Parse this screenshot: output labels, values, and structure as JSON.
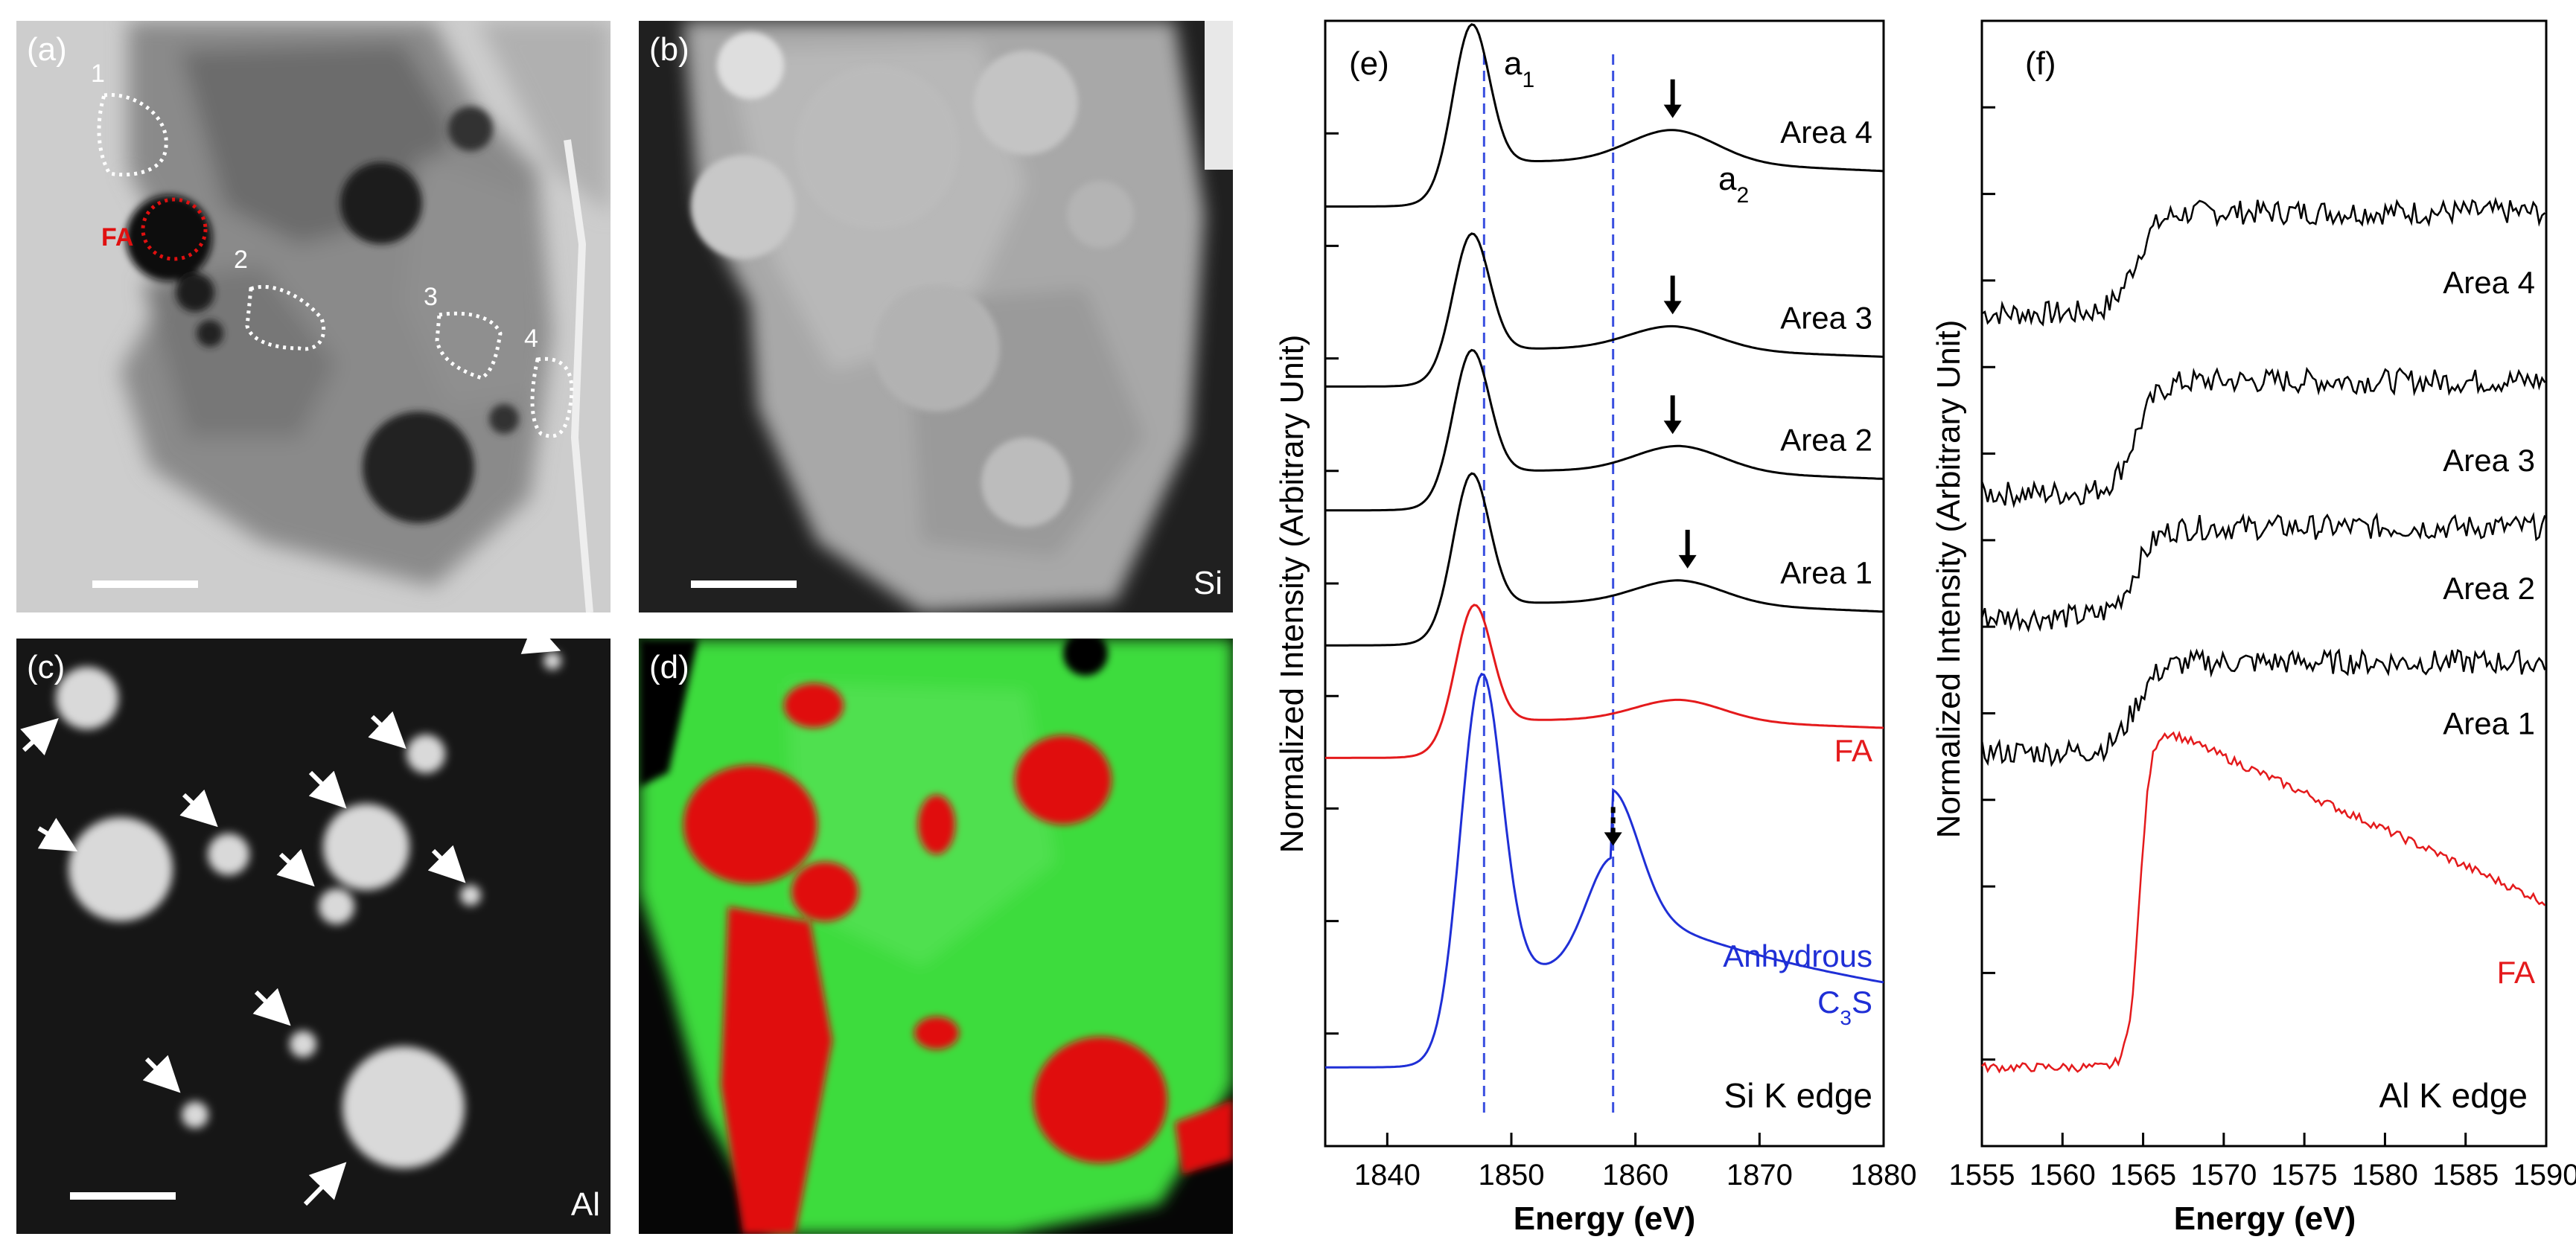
{
  "panels": {
    "a": {
      "label": "(a)",
      "regions": [
        "1",
        "FA",
        "2",
        "3",
        "4"
      ]
    },
    "b": {
      "label": "(b)",
      "element": "Si"
    },
    "c": {
      "label": "(c)",
      "element": "Al"
    },
    "d": {
      "label": "(d)"
    }
  },
  "colors": {
    "black_curve": "#000000",
    "fa_curve": "#e41a1c",
    "c3s_curve": "#1f2fd6",
    "guide_line": "#3a4fe0",
    "overlay_green": "#3ddc3d",
    "overlay_red": "#e01010"
  },
  "chart_data": [
    {
      "type": "line",
      "panel_label": "(e)",
      "xlabel": "Energy (eV)",
      "ylabel": "Normalized Intensity (Arbitrary Unit)",
      "xlim": [
        1835,
        1880
      ],
      "xticks": [
        1840,
        1850,
        1860,
        1870,
        1880
      ],
      "edge_label": "Si K edge",
      "annotations": {
        "a1": "a",
        "a1_sub": "1",
        "a2": "a",
        "a2_sub": "2"
      },
      "guide_lines_x": [
        1847.8,
        1858.2
      ],
      "series": [
        {
          "name": "Area 4",
          "color": "#000000",
          "offset": 0.835,
          "peak_x": 1846.8,
          "peak_amp": 0.125,
          "hump_x": 1863.0,
          "hump_amp": 0.028,
          "arrow_x": 1863.0
        },
        {
          "name": "Area 3",
          "color": "#000000",
          "offset": 0.675,
          "peak_x": 1846.8,
          "peak_amp": 0.105,
          "hump_x": 1863.0,
          "hump_amp": 0.02,
          "arrow_x": 1863.0
        },
        {
          "name": "Area 2",
          "color": "#000000",
          "offset": 0.565,
          "peak_x": 1846.8,
          "peak_amp": 0.11,
          "hump_x": 1863.5,
          "hump_amp": 0.022,
          "arrow_x": 1863.0
        },
        {
          "name": "Area 1",
          "color": "#000000",
          "offset": 0.445,
          "peak_x": 1846.8,
          "peak_amp": 0.118,
          "hump_x": 1863.5,
          "hump_amp": 0.02,
          "arrow_x": 1864.2
        },
        {
          "name": "FA",
          "color": "#e41a1c",
          "offset": 0.345,
          "peak_x": 1847.0,
          "peak_amp": 0.105,
          "hump_x": 1863.5,
          "hump_amp": 0.018
        },
        {
          "name": "Anhydrous C3S",
          "label_line1": "Anhydrous",
          "label_line2": "C",
          "label_sub": "3",
          "label_tail": "S",
          "color": "#1f2fd6",
          "offset": 0.07,
          "peak_x": 1847.6,
          "peak_amp": 0.27,
          "hump_x": 1858.2,
          "hump_amp": 0.1,
          "arrow_x": 1858.2
        }
      ]
    },
    {
      "type": "line",
      "panel_label": "(f)",
      "xlabel": "Energy (eV)",
      "ylabel": "Normalized Intensity (Arbitrary Unit)",
      "xlim": [
        1555,
        1590
      ],
      "xticks": [
        1555,
        1560,
        1565,
        1570,
        1575,
        1580,
        1585,
        1590
      ],
      "edge_label": "Al K edge",
      "series": [
        {
          "name": "Area 4",
          "color": "#000000",
          "pre": 0.74,
          "post": 0.83,
          "edge_x": 1564.5
        },
        {
          "name": "Area 3",
          "color": "#000000",
          "pre": 0.58,
          "post": 0.68,
          "edge_x": 1564.5
        },
        {
          "name": "Area 2",
          "color": "#000000",
          "pre": 0.47,
          "post": 0.55,
          "edge_x": 1564.5
        },
        {
          "name": "Area 1",
          "color": "#000000",
          "pre": 0.35,
          "post": 0.43,
          "edge_x": 1564.5
        },
        {
          "name": "FA",
          "color": "#e41a1c",
          "pre": 0.07,
          "post": 0.38,
          "edge_x": 1564.8,
          "decay": true
        }
      ]
    }
  ]
}
